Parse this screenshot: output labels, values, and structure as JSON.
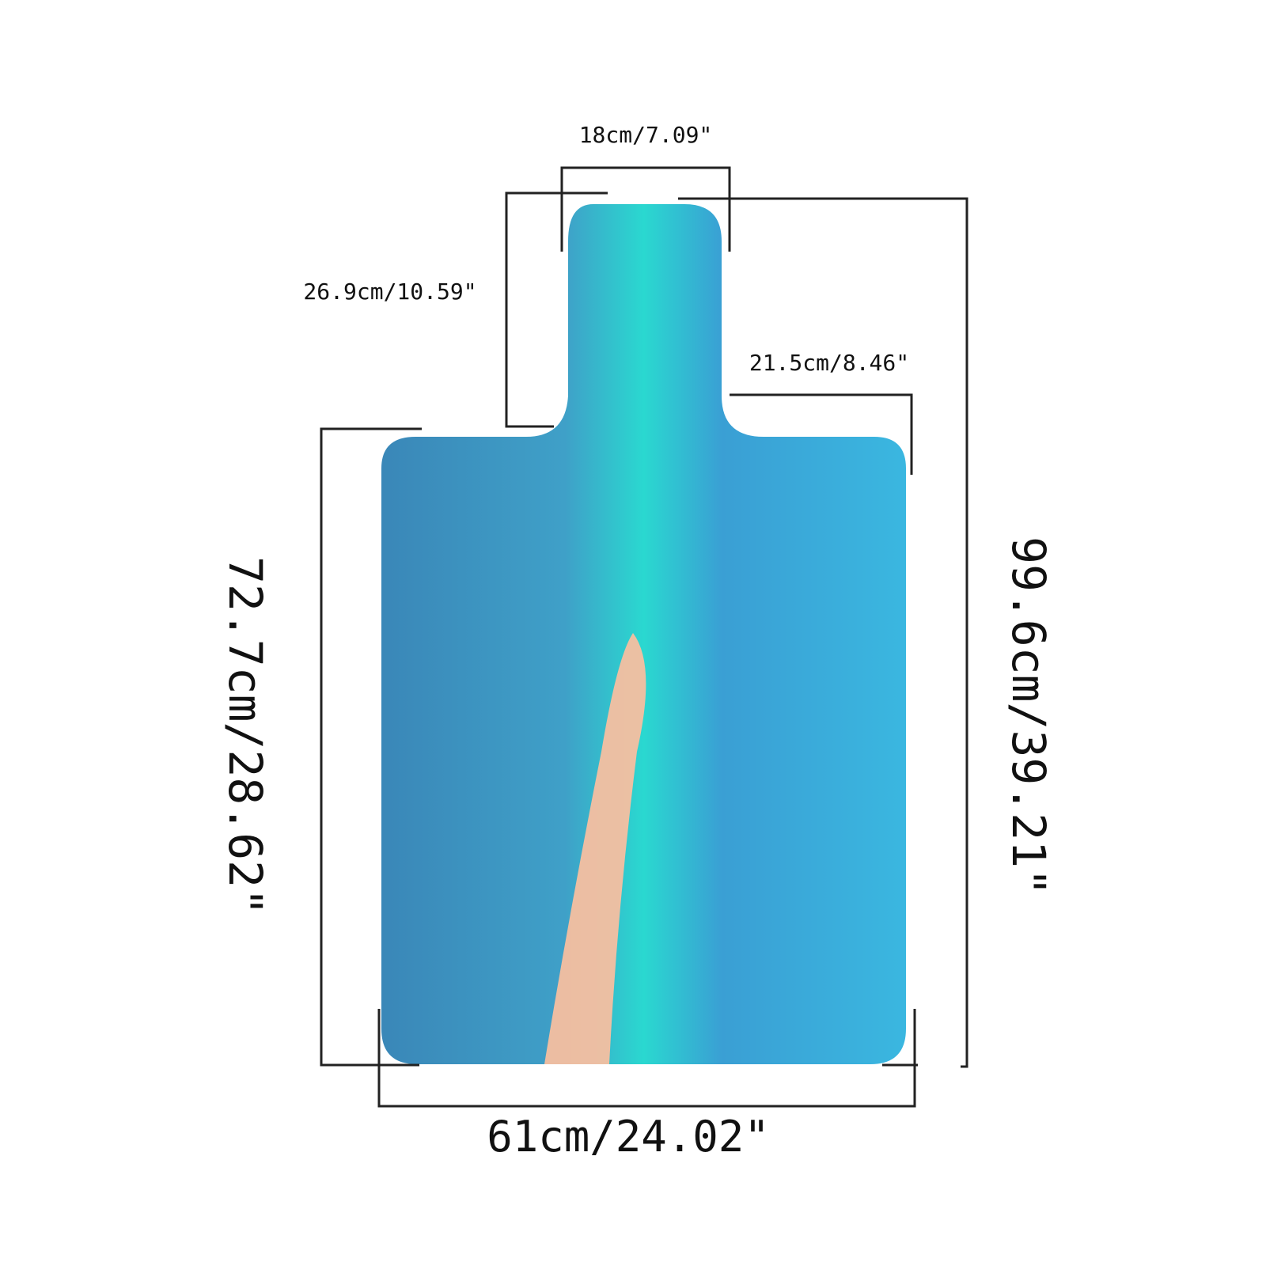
{
  "dimensions": {
    "top_width": "18cm/7.09\"",
    "neck_height": "26.9cm/10.59\"",
    "shoulder_width": "21.5cm/8.46\"",
    "body_height": "72.7cm/28.62\"",
    "total_height": "99.6cm/39.21\"",
    "bottom_width": "61cm/24.02\""
  }
}
